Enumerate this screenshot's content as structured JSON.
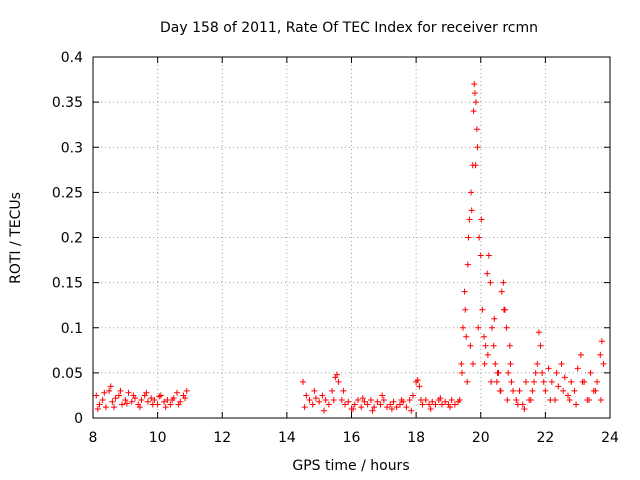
{
  "chart_data": {
    "type": "scatter",
    "title": "Day 158 of 2011, Rate Of TEC Index for receiver rcmn",
    "xlabel": "GPS time / hours",
    "ylabel": "ROTI / TECUs",
    "xlim": [
      8,
      24
    ],
    "ylim": [
      0,
      0.4
    ],
    "grid": true,
    "marker": "+",
    "marker_color": "#ff0000",
    "x_ticks": [
      8,
      10,
      12,
      14,
      16,
      18,
      20,
      22,
      24
    ],
    "x_tick_labels": [
      "8",
      "10",
      "12",
      "14",
      "16",
      "18",
      "20",
      "22",
      "24"
    ],
    "y_ticks": [
      0,
      0.05,
      0.1,
      0.15,
      0.2,
      0.25,
      0.3,
      0.35,
      0.4
    ],
    "y_tick_labels": [
      "0",
      "0.05",
      "0.1",
      "0.15",
      "0.2",
      "0.25",
      "0.3",
      "0.35",
      "0.4"
    ],
    "series": [
      {
        "x": [
          8.1,
          8.2,
          8.3,
          8.4,
          8.5,
          8.55,
          8.6,
          8.7,
          8.8,
          8.9,
          9.0,
          9.1,
          9.2,
          9.3,
          9.4,
          9.5,
          9.6,
          9.7,
          9.8,
          9.9,
          10.0,
          10.1,
          10.2,
          10.3,
          10.4,
          10.5,
          10.6,
          10.7,
          10.8,
          10.9,
          8.15,
          8.35,
          8.65,
          8.85,
          9.05,
          9.25,
          9.45,
          9.65,
          9.85,
          10.05,
          10.25,
          10.45,
          10.65,
          10.85,
          14.5,
          14.6,
          14.7,
          14.8,
          14.9,
          15.0,
          15.1,
          15.2,
          15.3,
          15.4,
          15.5,
          15.55,
          15.6,
          15.7,
          15.8,
          15.9,
          16.0,
          16.1,
          16.2,
          16.3,
          16.4,
          16.5,
          16.6,
          16.7,
          16.8,
          16.9,
          17.0,
          17.1,
          17.2,
          17.3,
          17.4,
          17.5,
          17.6,
          17.7,
          17.8,
          17.9,
          18.0,
          18.05,
          18.1,
          18.2,
          18.3,
          18.4,
          18.5,
          18.6,
          18.7,
          18.8,
          18.9,
          19.0,
          19.1,
          19.2,
          19.3,
          14.55,
          14.85,
          15.15,
          15.45,
          15.75,
          16.05,
          16.35,
          16.65,
          16.95,
          17.25,
          17.55,
          17.85,
          18.15,
          18.45,
          18.75,
          19.05,
          19.35,
          19.4,
          19.45,
          19.5,
          19.52,
          19.55,
          19.6,
          19.62,
          19.65,
          19.7,
          19.72,
          19.75,
          19.78,
          19.8,
          19.82,
          19.85,
          19.88,
          19.9,
          19.95,
          20.0,
          20.05,
          20.1,
          20.15,
          20.2,
          20.25,
          20.3,
          20.35,
          20.4,
          20.45,
          20.5,
          20.55,
          20.6,
          20.65,
          20.7,
          20.75,
          20.8,
          20.85,
          20.9,
          20.95,
          21.0,
          19.42,
          19.58,
          19.68,
          19.76,
          19.84,
          19.92,
          20.02,
          20.12,
          20.22,
          20.32,
          20.42,
          20.52,
          20.62,
          20.72,
          20.82,
          20.92,
          21.1,
          21.2,
          21.3,
          21.4,
          21.5,
          21.6,
          21.7,
          21.75,
          21.8,
          21.85,
          21.9,
          22.0,
          22.1,
          22.2,
          22.3,
          22.4,
          22.5,
          22.6,
          22.7,
          22.8,
          22.9,
          23.0,
          23.1,
          23.2,
          23.3,
          23.4,
          23.5,
          23.6,
          23.7,
          23.75,
          23.8,
          21.15,
          21.35,
          21.55,
          21.65,
          21.95,
          22.15,
          22.35,
          22.55,
          22.75,
          22.95,
          23.15,
          23.35,
          23.55,
          23.72
        ],
        "y": [
          0.025,
          0.015,
          0.02,
          0.012,
          0.03,
          0.035,
          0.018,
          0.022,
          0.025,
          0.015,
          0.02,
          0.028,
          0.018,
          0.022,
          0.015,
          0.02,
          0.025,
          0.018,
          0.022,
          0.02,
          0.015,
          0.025,
          0.018,
          0.02,
          0.015,
          0.022,
          0.028,
          0.018,
          0.025,
          0.03,
          0.01,
          0.028,
          0.012,
          0.03,
          0.016,
          0.025,
          0.012,
          0.028,
          0.015,
          0.024,
          0.012,
          0.02,
          0.015,
          0.022,
          0.04,
          0.025,
          0.02,
          0.015,
          0.022,
          0.018,
          0.025,
          0.02,
          0.015,
          0.03,
          0.045,
          0.048,
          0.04,
          0.02,
          0.015,
          0.018,
          0.01,
          0.015,
          0.02,
          0.012,
          0.018,
          0.015,
          0.02,
          0.012,
          0.018,
          0.015,
          0.02,
          0.012,
          0.015,
          0.018,
          0.012,
          0.015,
          0.018,
          0.012,
          0.02,
          0.025,
          0.04,
          0.042,
          0.035,
          0.015,
          0.02,
          0.015,
          0.018,
          0.015,
          0.02,
          0.015,
          0.018,
          0.015,
          0.02,
          0.015,
          0.018,
          0.012,
          0.03,
          0.008,
          0.02,
          0.03,
          0.01,
          0.022,
          0.008,
          0.025,
          0.01,
          0.02,
          0.008,
          0.02,
          0.01,
          0.022,
          0.012,
          0.02,
          0.06,
          0.1,
          0.14,
          0.12,
          0.09,
          0.17,
          0.2,
          0.22,
          0.25,
          0.23,
          0.28,
          0.34,
          0.37,
          0.36,
          0.35,
          0.32,
          0.3,
          0.2,
          0.18,
          0.12,
          0.09,
          0.08,
          0.16,
          0.18,
          0.15,
          0.1,
          0.08,
          0.06,
          0.04,
          0.05,
          0.03,
          0.14,
          0.15,
          0.12,
          0.1,
          0.05,
          0.08,
          0.04,
          0.03,
          0.05,
          0.04,
          0.08,
          0.06,
          0.28,
          0.1,
          0.22,
          0.06,
          0.07,
          0.04,
          0.11,
          0.05,
          0.03,
          0.12,
          0.02,
          0.06,
          0.02,
          0.03,
          0.015,
          0.04,
          0.02,
          0.03,
          0.05,
          0.06,
          0.095,
          0.08,
          0.05,
          0.03,
          0.055,
          0.04,
          0.02,
          0.035,
          0.06,
          0.045,
          0.025,
          0.04,
          0.03,
          0.055,
          0.07,
          0.04,
          0.02,
          0.05,
          0.03,
          0.04,
          0.07,
          0.085,
          0.06,
          0.015,
          0.01,
          0.02,
          0.04,
          0.04,
          0.02,
          0.05,
          0.03,
          0.02,
          0.015,
          0.04,
          0.02,
          0.03,
          0.02
        ]
      }
    ]
  }
}
